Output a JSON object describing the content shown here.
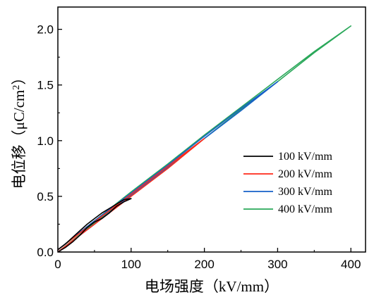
{
  "chart_data": {
    "type": "line",
    "xlabel": "电场强度（kV/mm）",
    "ylabel_main": "电位移（μC/cm",
    "ylabel_sup": "2",
    "ylabel_tail": "）",
    "xlim": [
      0,
      420
    ],
    "ylim": [
      0,
      2.2
    ],
    "x_ticks": [
      0,
      100,
      200,
      300,
      400
    ],
    "x_tick_labels": [
      "0",
      "100",
      "200",
      "300",
      "400"
    ],
    "y_ticks": [
      0.0,
      0.5,
      1.0,
      1.5,
      2.0
    ],
    "y_tick_labels": [
      "0.0",
      "0.5",
      "1.0",
      "1.5",
      "2.0"
    ],
    "legend_position": "lower-right",
    "series": [
      {
        "name": "100 kV/mm",
        "color": "#000000",
        "x": [
          0,
          10,
          20,
          30,
          40,
          50,
          60,
          70,
          80,
          90,
          100,
          90,
          80,
          70,
          60,
          50,
          40,
          30,
          20,
          10,
          0
        ],
        "y": [
          0.0,
          0.04,
          0.09,
          0.15,
          0.22,
          0.27,
          0.3,
          0.35,
          0.41,
          0.45,
          0.48,
          0.47,
          0.43,
          0.39,
          0.35,
          0.3,
          0.25,
          0.19,
          0.13,
          0.07,
          0.02
        ]
      },
      {
        "name": "200 kV/mm",
        "color": "#ff2a1a",
        "x": [
          0,
          50,
          100,
          150,
          200,
          150,
          100,
          50,
          0
        ],
        "y": [
          0.0,
          0.25,
          0.5,
          0.75,
          1.02,
          0.77,
          0.52,
          0.27,
          0.02
        ]
      },
      {
        "name": "300 kV/mm",
        "color": "#1560c8",
        "x": [
          0,
          50,
          100,
          150,
          200,
          250,
          300,
          250,
          200,
          150,
          100,
          50,
          0
        ],
        "y": [
          0.0,
          0.25,
          0.51,
          0.76,
          1.02,
          1.27,
          1.53,
          1.29,
          1.04,
          0.78,
          0.53,
          0.28,
          0.02
        ]
      },
      {
        "name": "400 kV/mm",
        "color": "#2aa85a",
        "x": [
          0,
          50,
          100,
          150,
          200,
          250,
          300,
          350,
          400,
          350,
          300,
          250,
          200,
          150,
          100,
          50,
          0
        ],
        "y": [
          0.0,
          0.26,
          0.51,
          0.77,
          1.02,
          1.28,
          1.53,
          1.79,
          2.03,
          1.8,
          1.55,
          1.3,
          1.05,
          0.79,
          0.54,
          0.28,
          0.02
        ]
      }
    ]
  }
}
